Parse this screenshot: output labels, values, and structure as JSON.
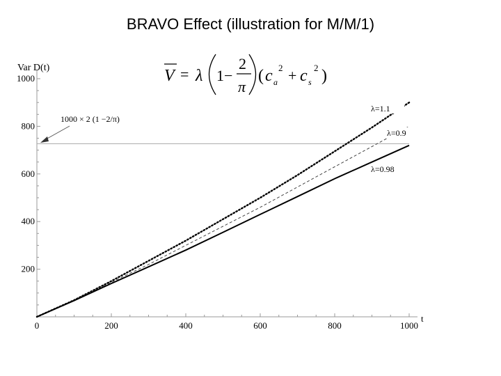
{
  "slide_title": "BRAVO Effect (illustration for M/M/1)",
  "formula": {
    "lhs": "V",
    "eq": "=",
    "lambda": "λ",
    "one_minus": "1−",
    "frac_num": "2",
    "frac_den": "π",
    "c_a": "c",
    "a_sub": "a",
    "sq": "2",
    "plus": "+",
    "c_s": "c",
    "s_sub": "s",
    "close": ")"
  },
  "chart_data": {
    "type": "line",
    "ylabel": "Var D(t)",
    "xlabel": "t",
    "xlim": [
      0,
      1000
    ],
    "ylim": [
      0,
      1000
    ],
    "xticks": [
      0,
      200,
      400,
      600,
      800,
      1000
    ],
    "yticks": [
      200,
      400,
      600,
      800,
      1000
    ],
    "grid": false,
    "annotation": {
      "text": "1000 × 2 (1 −2/π)",
      "value": 727
    },
    "series": [
      {
        "name": "λ=1.1",
        "style": "dotted",
        "x": [
          0,
          100,
          200,
          300,
          400,
          500,
          600,
          700,
          800,
          900,
          1000
        ],
        "y": [
          0,
          70,
          150,
          235,
          320,
          410,
          500,
          595,
          695,
          795,
          900
        ]
      },
      {
        "name": "λ=0.9",
        "style": "dashed",
        "x": [
          0,
          100,
          200,
          300,
          400,
          500,
          600,
          700,
          800,
          900,
          1000
        ],
        "y": [
          0,
          70,
          145,
          220,
          300,
          380,
          460,
          545,
          630,
          715,
          800
        ]
      },
      {
        "name": "λ=0.98",
        "style": "solid",
        "x": [
          0,
          100,
          200,
          300,
          400,
          500,
          600,
          700,
          800,
          900,
          1000
        ],
        "y": [
          0,
          68,
          140,
          210,
          280,
          355,
          430,
          505,
          580,
          650,
          720
        ]
      }
    ]
  }
}
